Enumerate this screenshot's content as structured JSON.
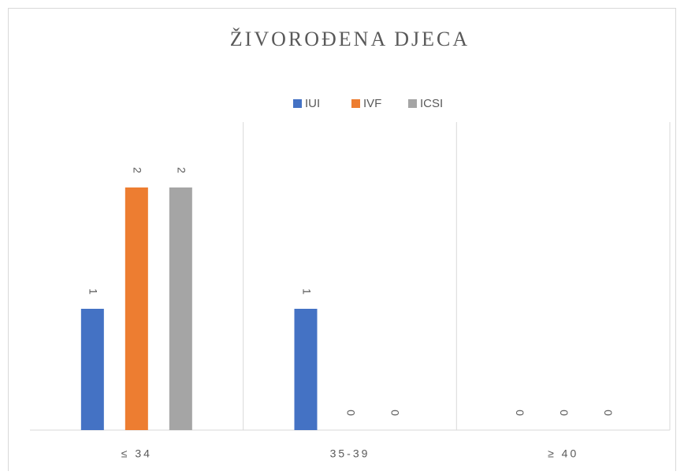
{
  "chart_data": {
    "type": "bar",
    "title": "ŽIVOROĐENA DJECA",
    "categories": [
      "≤ 34",
      "35-39",
      "≥ 40"
    ],
    "series": [
      {
        "name": "IUI",
        "color": "#4472c4",
        "values": [
          1,
          1,
          0
        ]
      },
      {
        "name": "IVF",
        "color": "#ed7d31",
        "values": [
          2,
          0,
          0
        ]
      },
      {
        "name": "ICSI",
        "color": "#a5a5a5",
        "values": [
          2,
          0,
          0
        ]
      }
    ],
    "ylim": [
      0,
      2.5
    ],
    "legend": "top"
  }
}
